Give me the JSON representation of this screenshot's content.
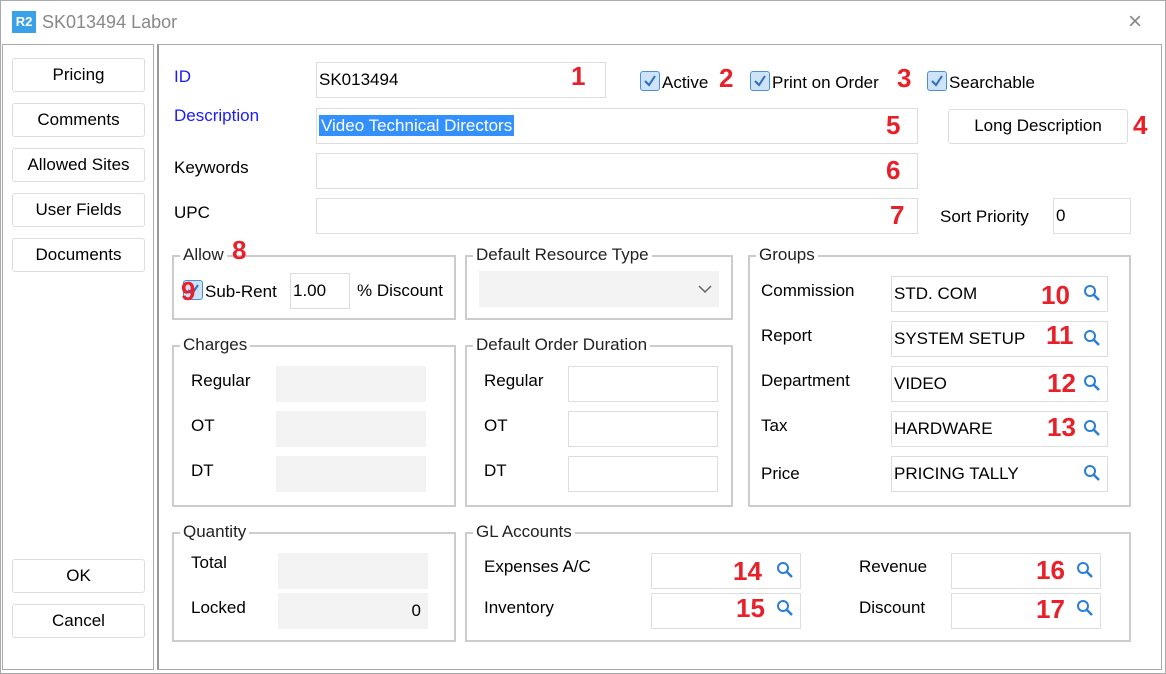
{
  "window": {
    "logo": "R2",
    "title": "SK013494 Labor",
    "close_icon": "×"
  },
  "sidebar": {
    "pricing": "Pricing",
    "comments": "Comments",
    "allowed_sites": "Allowed Sites",
    "user_fields": "User Fields",
    "documents": "Documents",
    "ok": "OK",
    "cancel": "Cancel"
  },
  "form": {
    "id_label": "ID",
    "id_value": "SK013494",
    "active": "Active",
    "print_on_order": "Print on Order",
    "searchable": "Searchable",
    "description_label": "Description",
    "description_value": "Video Technical Directors",
    "long_description": "Long Description",
    "keywords_label": "Keywords",
    "keywords_value": "",
    "upc_label": "UPC",
    "upc_value": "",
    "sort_priority_label": "Sort Priority",
    "sort_priority_value": "0"
  },
  "allow": {
    "title": "Allow",
    "sub_rent": "Sub-Rent",
    "discount_value": "1.00",
    "discount_label": "% Discount"
  },
  "resource_type": {
    "title": "Default Resource Type",
    "value": ""
  },
  "charges": {
    "title": "Charges",
    "regular": "Regular",
    "ot": "OT",
    "dt": "DT"
  },
  "duration": {
    "title": "Default Order Duration",
    "regular": "Regular",
    "ot": "OT",
    "dt": "DT"
  },
  "groups": {
    "title": "Groups",
    "items": [
      {
        "label": "Commission",
        "value": "STD. COM"
      },
      {
        "label": "Report",
        "value": "SYSTEM SETUP"
      },
      {
        "label": "Department",
        "value": "VIDEO"
      },
      {
        "label": "Tax",
        "value": "HARDWARE"
      },
      {
        "label": "Price",
        "value": "PRICING TALLY"
      }
    ]
  },
  "quantity": {
    "title": "Quantity",
    "total": "Total",
    "locked": "Locked",
    "locked_value": "0"
  },
  "gl": {
    "title": "GL Accounts",
    "expenses": "Expenses A/C",
    "inventory": "Inventory",
    "revenue": "Revenue",
    "discount": "Discount"
  },
  "annotations": [
    "1",
    "2",
    "3",
    "4",
    "5",
    "6",
    "7",
    "8",
    "9",
    "10",
    "11",
    "12",
    "13",
    "14",
    "15",
    "16",
    "17"
  ],
  "colors": {
    "accent": "#3aa0e8",
    "annotation": "#e8202a",
    "label_blue": "#1a1aff",
    "selection": "#3390ff"
  }
}
